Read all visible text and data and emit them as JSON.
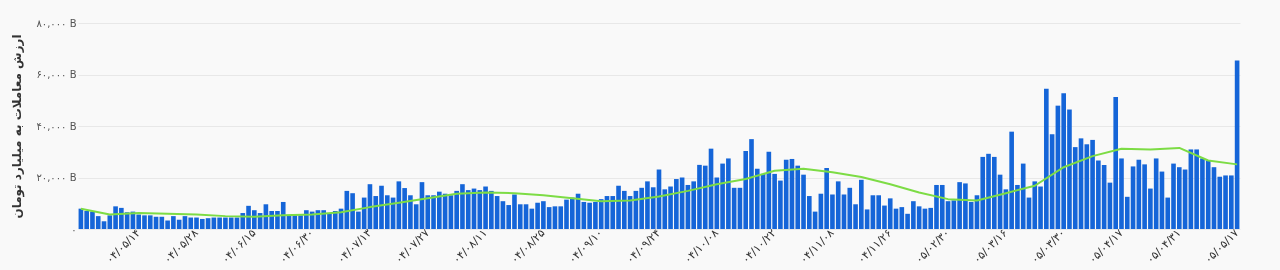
{
  "chart_data": {
    "type": "bar",
    "ylabel": "ارزش معاملات به میلیارد تومان",
    "categories": [
      null,
      null,
      null,
      null,
      null,
      null,
      null,
      null,
      null,
      null,
      "۰۴/۰۵/۱۴",
      null,
      null,
      null,
      null,
      null,
      null,
      null,
      null,
      null,
      "۰۴/۰۵/۲۸",
      null,
      null,
      null,
      null,
      null,
      null,
      null,
      null,
      null,
      "۰۴/۰۶/۱۵",
      null,
      null,
      null,
      null,
      null,
      null,
      null,
      null,
      null,
      "۰۴/۰۶/۳۰",
      null,
      null,
      null,
      null,
      null,
      null,
      null,
      null,
      null,
      "۰۴/۰۷/۱۳",
      null,
      null,
      null,
      null,
      null,
      null,
      null,
      null,
      null,
      "۰۴/۰۷/۲۷",
      null,
      null,
      null,
      null,
      null,
      null,
      null,
      null,
      null,
      "۰۴/۰۸/۱۱",
      null,
      null,
      null,
      null,
      null,
      null,
      null,
      null,
      null,
      "۰۴/۰۸/۲۵",
      null,
      null,
      null,
      null,
      null,
      null,
      null,
      null,
      null,
      "۰۴/۰۹/۱۰",
      null,
      null,
      null,
      null,
      null,
      null,
      null,
      null,
      null,
      "۰۴/۰۹/۲۴",
      null,
      null,
      null,
      null,
      null,
      null,
      null,
      null,
      null,
      "۰۴/۱۰/۰۸",
      null,
      null,
      null,
      null,
      null,
      null,
      null,
      null,
      null,
      "۰۴/۱۰/۲۲",
      null,
      null,
      null,
      null,
      null,
      null,
      null,
      null,
      null,
      "۰۴/۱۱/۰۸",
      null,
      null,
      null,
      null,
      null,
      null,
      null,
      null,
      null,
      "۰۴/۱۱/۲۶",
      null,
      null,
      null,
      null,
      null,
      null,
      null,
      null,
      null,
      "۰۵/۰۲/۳۰",
      null,
      null,
      null,
      null,
      null,
      null,
      null,
      null,
      null,
      "۰۵/۰۳/۱۶",
      null,
      null,
      null,
      null,
      null,
      null,
      null,
      null,
      null,
      "۰۵/۰۳/۳۰",
      null,
      null,
      null,
      null,
      null,
      null,
      null,
      null,
      null,
      "۰۵/۰۴/۱۷",
      null,
      null,
      null,
      null,
      null,
      null,
      null,
      null,
      null,
      "۰۵/۰۴/۳۱",
      null,
      null,
      null,
      null,
      null,
      null,
      null,
      null,
      null,
      "۰۵/۰۵/۱۷"
    ],
    "series": [
      {
        "color": "#1565d8",
        "values": [
          7900,
          7000,
          6750,
          5000,
          3000,
          5300,
          8800,
          8200,
          6500,
          6750,
          5600,
          5300,
          5300,
          4750,
          4750,
          3300,
          5000,
          3600,
          5000,
          4450,
          4450,
          3900,
          4200,
          4450,
          4450,
          4450,
          4450,
          4450,
          6200,
          9000,
          7300,
          6200,
          9600,
          7000,
          7000,
          10500,
          5300,
          5300,
          5300,
          7300,
          6750,
          7300,
          7300,
          6200,
          7000,
          7900,
          14800,
          13900,
          6750,
          12200,
          17400,
          12800,
          16800,
          13100,
          12200,
          18500,
          15900,
          13100,
          9600,
          18200,
          13100,
          13100,
          14500,
          13700,
          13100,
          14800,
          17400,
          15100,
          15700,
          15100,
          16500,
          14800,
          12800,
          10800,
          9300,
          13400,
          9600,
          9600,
          7900,
          10200,
          10800,
          8500,
          8800,
          8800,
          11400,
          12200,
          13700,
          10500,
          10200,
          10500,
          11600,
          12800,
          12800,
          16800,
          14800,
          12800,
          14800,
          16000,
          18500,
          16200,
          23100,
          15400,
          16500,
          19400,
          20000,
          17100,
          18500,
          24900,
          24600,
          31200,
          20000,
          25400,
          27400,
          16000,
          16000,
          30300,
          34900,
          23400,
          21400,
          30000,
          21400,
          18800,
          26900,
          27200,
          24600,
          21100,
          12800,
          6750,
          13700,
          23700,
          13400,
          18500,
          13400,
          16000,
          9600,
          19100,
          7600,
          13100,
          13100,
          9100,
          11900,
          7900,
          8500,
          5900,
          10800,
          8800,
          7900,
          8200,
          17100,
          17100,
          10800,
          11100,
          18200,
          17700,
          10500,
          13100,
          28000,
          29200,
          28000,
          21100,
          15400,
          37800,
          17100,
          25400,
          12200,
          18500,
          16500,
          54500,
          36800,
          47900,
          52700,
          46400,
          31800,
          35200,
          32900,
          34600,
          26600,
          24900,
          18000,
          51300,
          27400,
          12500,
          24300,
          26900,
          25100,
          15700,
          27400,
          22300,
          12200,
          25400,
          24000,
          23100,
          30900,
          30900,
          27400,
          26600,
          24000,
          20300,
          20800,
          20800,
          65400
        ]
      },
      {
        "type": "line",
        "color": "#7ddc45",
        "values": [
          7900,
          null,
          null,
          null,
          null,
          5600,
          null,
          null,
          null,
          null,
          6200,
          null,
          null,
          null,
          null,
          5900,
          null,
          null,
          null,
          null,
          5600,
          null,
          null,
          null,
          null,
          5000,
          null,
          null,
          null,
          null,
          4750,
          null,
          null,
          null,
          null,
          5300,
          null,
          null,
          null,
          null,
          5600,
          null,
          null,
          null,
          null,
          6500,
          null,
          null,
          null,
          null,
          8500,
          null,
          null,
          null,
          null,
          10200,
          null,
          null,
          null,
          null,
          11900,
          null,
          null,
          null,
          null,
          13700,
          null,
          null,
          null,
          null,
          14200,
          null,
          null,
          null,
          null,
          13900,
          null,
          null,
          null,
          null,
          13100,
          null,
          null,
          null,
          null,
          11900,
          null,
          null,
          null,
          null,
          10800,
          null,
          null,
          null,
          null,
          11100,
          null,
          null,
          null,
          null,
          12600,
          null,
          null,
          null,
          null,
          14800,
          null,
          null,
          null,
          null,
          17400,
          null,
          null,
          null,
          null,
          19400,
          null,
          null,
          null,
          null,
          22600,
          null,
          null,
          null,
          null,
          23400,
          null,
          null,
          null,
          null,
          22000,
          null,
          null,
          null,
          null,
          20200,
          null,
          null,
          null,
          null,
          17400,
          null,
          null,
          null,
          null,
          14200,
          null,
          null,
          null,
          null,
          11600,
          null,
          null,
          null,
          null,
          11100,
          null,
          null,
          null,
          null,
          13900,
          null,
          null,
          null,
          null,
          16800,
          null,
          null,
          null,
          null,
          24000,
          null,
          null,
          null,
          null,
          28300,
          null,
          null,
          null,
          null,
          31200,
          null,
          null,
          null,
          null,
          30900,
          null,
          null,
          null,
          null,
          31500,
          null,
          null,
          null,
          null,
          26600,
          null,
          null,
          null,
          null,
          25100
        ]
      }
    ],
    "ylim": [
      0,
      80000
    ],
    "yticks": [
      {
        "value": 0,
        "label": "۰"
      },
      {
        "value": 20000,
        "label": "۲۰,۰۰۰ B"
      },
      {
        "value": 40000,
        "label": "۴۰,۰۰۰ B"
      },
      {
        "value": 60000,
        "label": "۶۰,۰۰۰ B"
      },
      {
        "value": 80000,
        "label": "۸۰,۰۰۰ B"
      }
    ],
    "grid": "y"
  }
}
